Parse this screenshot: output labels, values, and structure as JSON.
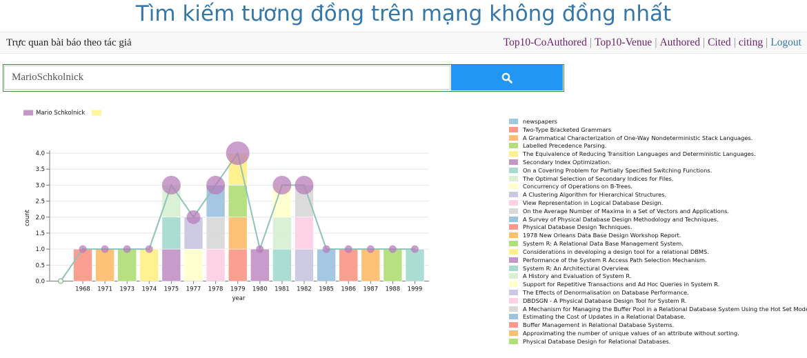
{
  "header": {
    "title": "Tìm kiếm tương đồng trên mạng không đồng nhất"
  },
  "navbar": {
    "subtitle": "Trực quan bài báo theo tác giả",
    "links": [
      "Top10-CoAuthored",
      "Top10-Venue",
      "Authored",
      "Cited",
      "citing"
    ],
    "logout": "Logout"
  },
  "search": {
    "value": "MarioSchkolnick",
    "icon": "search-icon",
    "button_color": "#2196f3"
  },
  "top_legend": [
    {
      "label": "Mario Schkolnick",
      "color": "#c497c8"
    },
    {
      "label": "",
      "color": "#fff59a"
    }
  ],
  "palette": [
    "#9ecae1",
    "#fb9a8a",
    "#fdbf6f",
    "#b2df7a",
    "#fff08a",
    "#c497c8",
    "#a7dbd0",
    "#d9f0d3",
    "#ffffcc",
    "#cac8e3",
    "#fdd0e4",
    "#d9d9d9",
    "#9fc4e0"
  ],
  "chart_data": {
    "type": "bar",
    "xlabel": "year",
    "ylabel": "count",
    "ylim": [
      0,
      4
    ],
    "yticks": [
      "0.0",
      "0.5",
      "1.0",
      "1.5",
      "2.0",
      "2.5",
      "3.0",
      "3.5",
      "4.0"
    ],
    "categories": [
      "1968",
      "1971",
      "1973",
      "1974",
      "1975",
      "1977",
      "1978",
      "1979",
      "1980",
      "1981",
      "1982",
      "1985",
      "1986",
      "1987",
      "1988",
      "1999"
    ],
    "stacks": [
      [
        "#fb9a8a"
      ],
      [
        "#fdbf6f"
      ],
      [
        "#b2df7a"
      ],
      [
        "#fff08a"
      ],
      [
        "#c497c8",
        "#a7dbd0",
        "#d9f0d3"
      ],
      [
        "#ffffcc",
        "#cac8e3"
      ],
      [
        "#fdd0e4",
        "#d9d9d9",
        "#9fc4e0"
      ],
      [
        "#fb9a8a",
        "#fdbf6f",
        "#b2df7a",
        "#fff08a"
      ],
      [
        "#c497c8"
      ],
      [
        "#a7dbd0",
        "#d9f0d3",
        "#ffffcc"
      ],
      [
        "#cac8e3",
        "#fdd0e4",
        "#d9d9d9"
      ],
      [
        "#9fc4e0"
      ],
      [
        "#fb9a8a"
      ],
      [
        "#fdbf6f"
      ],
      [
        "#b2df7a"
      ],
      [
        "#a7dbd0"
      ]
    ],
    "series": [
      {
        "name": "Mario Schkolnick",
        "values": [
          1,
          1,
          1,
          1,
          3,
          2,
          3,
          4,
          1,
          3,
          3,
          1,
          1,
          1,
          1,
          1
        ]
      }
    ]
  },
  "papers": [
    {
      "title": "newspapers",
      "color": "#9ecae1"
    },
    {
      "title": "Two-Type Bracketed Grammars",
      "color": "#fb9a8a"
    },
    {
      "title": "A Grammatical Characterization of One-Way Nondeterministic Stack Languages.",
      "color": "#fdbf6f"
    },
    {
      "title": "Labelled Precedence Parsing.",
      "color": "#b2df7a"
    },
    {
      "title": "The Equivalence of Reducing Transition Languages and Deterministic Languages.",
      "color": "#fff08a"
    },
    {
      "title": "Secondary Index Optimization.",
      "color": "#c497c8"
    },
    {
      "title": "On a Covering Problem for Partially Specified Switching Functions.",
      "color": "#a7dbd0"
    },
    {
      "title": "The Optimal Selection of Secondary Indices for Files.",
      "color": "#d9f0d3"
    },
    {
      "title": "Concurrency of Operations on B-Trees.",
      "color": "#ffffcc"
    },
    {
      "title": "A Clustering Algorithm for Hierarchical Structures.",
      "color": "#cac8e3"
    },
    {
      "title": "View Representation in Logical Database Design.",
      "color": "#fdd0e4"
    },
    {
      "title": "On the Average Number of Maxima in a Set of Vectors and Applications.",
      "color": "#d9d9d9"
    },
    {
      "title": "A Survey of Physical Database Design Methodology and Techniques.",
      "color": "#9fc4e0"
    },
    {
      "title": "Physical Database Design Techniques.",
      "color": "#fb9a8a"
    },
    {
      "title": "1978 New Orleans Data Base Design Workshop Report.",
      "color": "#fdbf6f"
    },
    {
      "title": "System R: A Relational Data Base Management System.",
      "color": "#b2df7a"
    },
    {
      "title": "Considerations in developing a design tool for a relational DBMS.",
      "color": "#fff08a"
    },
    {
      "title": "Performance of the System R Access Path Selection Mechanism.",
      "color": "#c497c8"
    },
    {
      "title": "System R: An Architectural Overview.",
      "color": "#a7dbd0"
    },
    {
      "title": "A History and Evaluation of System R.",
      "color": "#d9f0d3"
    },
    {
      "title": "Support for Repetitive Transactions and Ad Hoc Queries in System R.",
      "color": "#ffffcc"
    },
    {
      "title": "The Effects of Denormalisation on Database Performance.",
      "color": "#cac8e3"
    },
    {
      "title": "DBDSGN - A Physical Database Design Tool for System R.",
      "color": "#fdd0e4"
    },
    {
      "title": "A Mechanism for Managing the Buffer Pool in a Relational Database System Using the Hot Set Model.",
      "color": "#d9d9d9"
    },
    {
      "title": "Estimating the Cost of Updates in a Relational Database.",
      "color": "#9fc4e0"
    },
    {
      "title": "Buffer Management in Relational Database Systems.",
      "color": "#fb9a8a"
    },
    {
      "title": "Approximating the number of unique values of an attribute without sorting.",
      "color": "#fdbf6f"
    },
    {
      "title": "Physical Database Design for Relational Databases.",
      "color": "#b2df7a"
    }
  ]
}
